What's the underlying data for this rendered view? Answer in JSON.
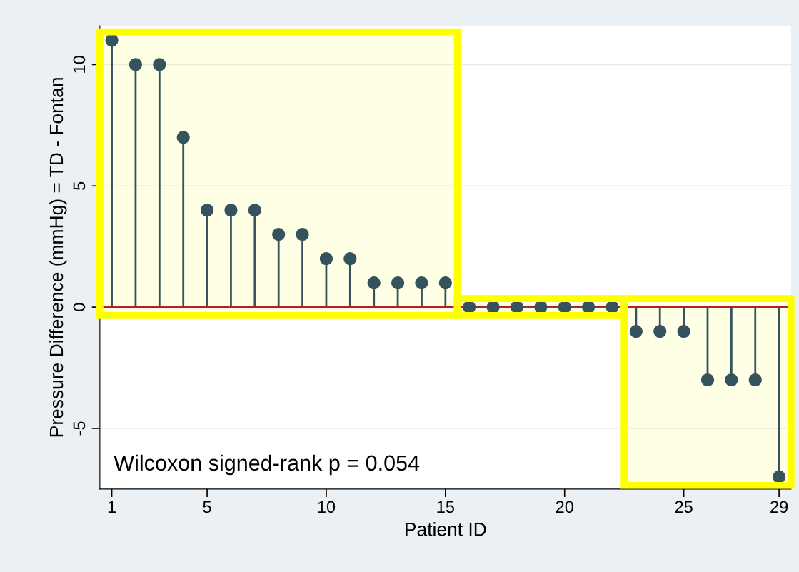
{
  "chart_data": {
    "type": "lollipop",
    "xlabel": "Patient ID",
    "ylabel": "Pressure Difference (mmHg) = TD - Fontan",
    "x": [
      1,
      2,
      3,
      4,
      5,
      6,
      7,
      8,
      9,
      10,
      11,
      12,
      13,
      14,
      15,
      16,
      17,
      18,
      19,
      20,
      21,
      22,
      23,
      24,
      25,
      26,
      27,
      28,
      29
    ],
    "values": [
      11,
      10,
      10,
      7,
      4,
      4,
      4,
      3,
      3,
      2,
      2,
      1,
      1,
      1,
      1,
      0,
      0,
      0,
      0,
      0,
      0,
      0,
      -1,
      -1,
      -1,
      -3,
      -3,
      -3,
      -7
    ],
    "color": "#34535d",
    "xlim": [
      0.5,
      29.5
    ],
    "ylim": [
      -7.5,
      11.6
    ],
    "xticks": [
      1,
      5,
      10,
      15,
      20,
      25,
      29
    ],
    "yticks": [
      -5,
      0,
      5,
      10
    ],
    "grid": "y",
    "marker": "circle",
    "ref_lines": [
      {
        "axis": "y",
        "value": 0,
        "color": "#b22222"
      }
    ],
    "annotations": [
      "Wilcoxon signed-rank p = 0.054"
    ]
  }
}
